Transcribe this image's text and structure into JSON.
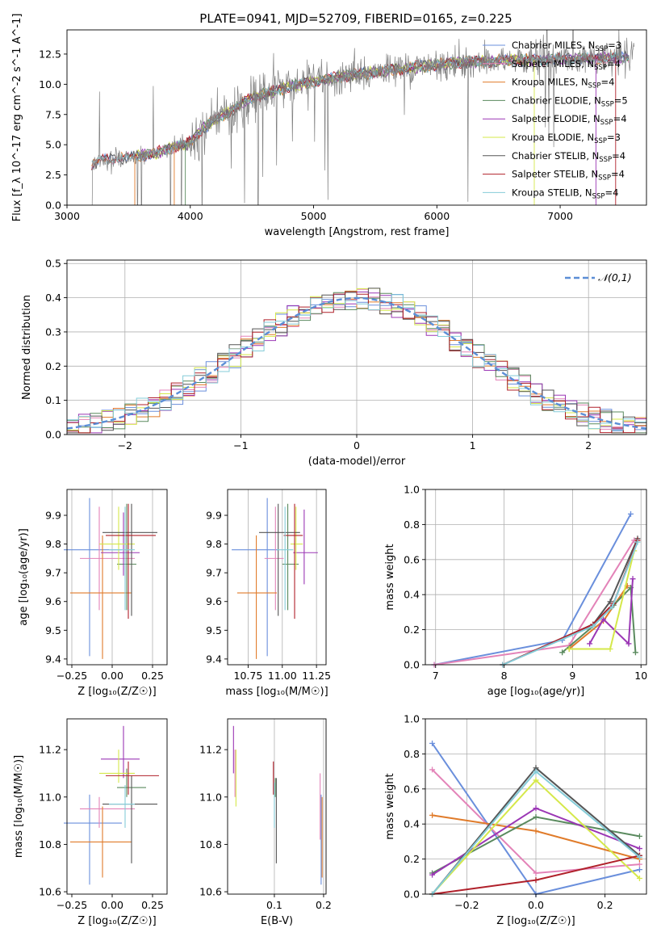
{
  "figure_title": "PLATE=0941, MJD=52709, FIBERID=0165, z=0.225",
  "colors": {
    "chabrier_miles": "#6a8fdc",
    "salpeter_miles": "#e383b8",
    "kroupa_miles": "#e07b2a",
    "chabrier_elodie": "#5a8a5e",
    "salpeter_elodie": "#9b37b5",
    "kroupa_elodie": "#d5e84a",
    "chabrier_stelib": "#555555",
    "salpeter_stelib": "#b0202a",
    "kroupa_stelib": "#84ccd8",
    "data": "#808080",
    "normal": "#5b8ed6",
    "grid": "#b0b0b0"
  },
  "chart_data": [
    {
      "id": "spectrum",
      "type": "line",
      "xlabel": "wavelength [Angstrom, rest frame]",
      "ylabel": "Flux [f_λ 10^-17 erg cm^-2 s^-1 A^-1]",
      "xlim": [
        3000,
        7700
      ],
      "ylim": [
        0,
        14.5
      ],
      "xticks": [
        "3000",
        "4000",
        "5000",
        "6000",
        "7000"
      ],
      "yticks": [
        "0.0",
        "2.5",
        "5.0",
        "7.5",
        "10.0",
        "12.5"
      ],
      "grid": false,
      "legend_position": "right",
      "legend": [
        {
          "label": "Chabrier MILES, N",
          "sub": "SSP",
          "tail": "=3"
        },
        {
          "label": "Salpeter MILES, N",
          "sub": "SSP",
          "tail": "=4"
        },
        {
          "label": "Kroupa MILES, N",
          "sub": "SSP",
          "tail": "=4"
        },
        {
          "label": "Chabrier ELODIE, N",
          "sub": "SSP",
          "tail": "=5"
        },
        {
          "label": "Salpeter ELODIE, N",
          "sub": "SSP",
          "tail": "=4"
        },
        {
          "label": "Kroupa ELODIE, N",
          "sub": "SSP",
          "tail": "=3"
        },
        {
          "label": "Chabrier STELIB, N",
          "sub": "SSP",
          "tail": "=4"
        },
        {
          "label": "Salpeter STELIB, N",
          "sub": "SSP",
          "tail": "=4"
        },
        {
          "label": "Kroupa STELIB, N",
          "sub": "SSP",
          "tail": "=4"
        }
      ],
      "continuum": {
        "x": [
          3200,
          3300,
          3400,
          3500,
          3600,
          3700,
          3800,
          3900,
          4000,
          4100,
          4200,
          4300,
          4400,
          4500,
          4600,
          4700,
          4800,
          4900,
          5000,
          5200,
          5400,
          5600,
          5800,
          6000,
          6200,
          6400,
          6600,
          6800,
          7000,
          7200,
          7400,
          7500,
          7600,
          7700
        ],
        "y": [
          3.3,
          3.8,
          3.9,
          3.9,
          4.1,
          4.2,
          4.6,
          4.9,
          5.2,
          6.3,
          7.0,
          7.6,
          8.3,
          8.9,
          9.2,
          9.5,
          9.8,
          10.0,
          10.2,
          10.6,
          10.9,
          11.1,
          11.4,
          11.6,
          11.8,
          11.9,
          12.0,
          12.0,
          12.1,
          12.1,
          12.2,
          12.2,
          12.3,
          12.3
        ]
      }
    },
    {
      "id": "residuals",
      "type": "area",
      "xlabel": "(data-model)/error",
      "ylabel": "Normed distribution",
      "xlim": [
        -2.5,
        2.5
      ],
      "ylim": [
        0,
        0.51
      ],
      "xticks": [
        "−2",
        "−1",
        "0",
        "1",
        "2"
      ],
      "yticks": [
        "0.0",
        "0.1",
        "0.2",
        "0.3",
        "0.4",
        "0.5"
      ],
      "grid": true,
      "legend_position": "top-right",
      "legend_label": "𝒩(0,1)",
      "bin_width": 0.1
    },
    {
      "id": "z_vs_age",
      "type": "scatter",
      "xlabel": "Z [log₁₀(Z/Z☉)]",
      "ylabel": "age  [log₁₀(age/yr)]",
      "xlim": [
        -0.28,
        0.34
      ],
      "ylim": [
        9.38,
        9.99
      ],
      "xticks": [
        "−0.25",
        "0.00",
        "0.25"
      ],
      "yticks": [
        "9.4",
        "9.5",
        "9.6",
        "9.7",
        "9.8",
        "9.9"
      ],
      "points": [
        {
          "series": "chabrier_miles",
          "x": -0.14,
          "xerr": [
            0.16,
            0.2
          ],
          "y": 9.78,
          "yerr": [
            0.37,
            0.18
          ]
        },
        {
          "series": "salpeter_miles",
          "x": -0.08,
          "xerr": [
            0.12,
            0.22
          ],
          "y": 9.75,
          "yerr": [
            0.18,
            0.18
          ]
        },
        {
          "series": "kroupa_miles",
          "x": -0.06,
          "xerr": [
            0.2,
            0.18
          ],
          "y": 9.63,
          "yerr": [
            0.23,
            0.2
          ]
        },
        {
          "series": "chabrier_elodie",
          "x": 0.09,
          "xerr": [
            0.06,
            0.06
          ],
          "y": 9.73,
          "yerr": [
            0.16,
            0.21
          ]
        },
        {
          "series": "salpeter_elodie",
          "x": 0.07,
          "xerr": [
            0.14,
            0.1
          ],
          "y": 9.77,
          "yerr": [
            0.08,
            0.14
          ]
        },
        {
          "series": "kroupa_elodie",
          "x": 0.04,
          "xerr": [
            0.12,
            0.1
          ],
          "y": 9.8,
          "yerr": [
            0.09,
            0.13
          ]
        },
        {
          "series": "chabrier_stelib",
          "x": 0.12,
          "xerr": [
            0.18,
            0.16
          ],
          "y": 9.84,
          "yerr": [
            0.29,
            0.1
          ]
        },
        {
          "series": "salpeter_stelib",
          "x": 0.1,
          "xerr": [
            0.14,
            0.17
          ],
          "y": 9.83,
          "yerr": [
            0.29,
            0.11
          ]
        },
        {
          "series": "kroupa_stelib",
          "x": 0.08,
          "xerr": [
            0.1,
            0.06
          ],
          "y": 9.78,
          "yerr": [
            0.21,
            0.15
          ]
        }
      ]
    },
    {
      "id": "mass_vs_age",
      "type": "scatter",
      "xlabel": "mass [log₁₀(M/M☉)]",
      "ylabel": "",
      "xlim": [
        10.6,
        11.32
      ],
      "ylim": [
        9.38,
        9.99
      ],
      "xticks": [
        "10.75",
        "11.00",
        "11.25"
      ],
      "yticks": [
        "9.4",
        "9.5",
        "9.6",
        "9.7",
        "9.8",
        "9.9"
      ],
      "points": [
        {
          "series": "chabrier_miles",
          "x": 10.89,
          "xerr": [
            0.26,
            0.08
          ],
          "y": 9.78,
          "yerr": [
            0.37,
            0.18
          ]
        },
        {
          "series": "salpeter_miles",
          "x": 10.95,
          "xerr": [
            0.08,
            0.06
          ],
          "y": 9.75,
          "yerr": [
            0.18,
            0.18
          ]
        },
        {
          "series": "kroupa_miles",
          "x": 10.81,
          "xerr": [
            0.14,
            0.15
          ],
          "y": 9.63,
          "yerr": [
            0.23,
            0.2
          ]
        },
        {
          "series": "chabrier_elodie",
          "x": 11.04,
          "xerr": [
            0.04,
            0.08
          ],
          "y": 9.73,
          "yerr": [
            0.16,
            0.21
          ]
        },
        {
          "series": "salpeter_elodie",
          "x": 11.16,
          "xerr": [
            0.08,
            0.1
          ],
          "y": 9.77,
          "yerr": [
            0.11,
            0.15
          ]
        },
        {
          "series": "kroupa_elodie",
          "x": 11.1,
          "xerr": [
            0.04,
            0.05
          ],
          "y": 9.8,
          "yerr": [
            0.09,
            0.13
          ]
        },
        {
          "series": "chabrier_stelib",
          "x": 10.97,
          "xerr": [
            0.14,
            0.16
          ],
          "y": 9.84,
          "yerr": [
            0.29,
            0.1
          ]
        },
        {
          "series": "salpeter_stelib",
          "x": 11.09,
          "xerr": [
            0.08,
            0.06
          ],
          "y": 9.83,
          "yerr": [
            0.29,
            0.11
          ]
        },
        {
          "series": "kroupa_stelib",
          "x": 11.02,
          "xerr": [
            0.06,
            0.06
          ],
          "y": 9.78,
          "yerr": [
            0.21,
            0.15
          ]
        }
      ]
    },
    {
      "id": "age_mass_weight",
      "type": "line",
      "xlabel": "age  [log₁₀(age/yr)]",
      "ylabel": "mass weight",
      "xlim": [
        6.85,
        10.08
      ],
      "ylim": [
        0,
        1.0
      ],
      "xticks": [
        "7",
        "8",
        "9",
        "10"
      ],
      "yticks": [
        "0.0",
        "0.2",
        "0.4",
        "0.6",
        "0.8",
        "1.0"
      ],
      "grid": true,
      "series": [
        {
          "name": "chabrier_miles",
          "x": [
            6.98,
            8.85,
            9.85
          ],
          "y": [
            0.0,
            0.14,
            0.86
          ]
        },
        {
          "name": "salpeter_miles",
          "x": [
            6.98,
            8.95,
            9.9
          ],
          "y": [
            0.0,
            0.11,
            0.71
          ]
        },
        {
          "name": "kroupa_miles",
          "x": [
            8.95,
            9.45,
            9.8
          ],
          "y": [
            0.09,
            0.25,
            0.45
          ]
        },
        {
          "name": "chabrier_elodie",
          "x": [
            8.85,
            9.3,
            9.6,
            9.85,
            9.92
          ],
          "y": [
            0.07,
            0.22,
            0.34,
            0.44,
            0.07
          ]
        },
        {
          "name": "salpeter_elodie",
          "x": [
            9.25,
            9.45,
            9.82,
            9.88
          ],
          "y": [
            0.12,
            0.26,
            0.12,
            0.49
          ]
        },
        {
          "name": "kroupa_elodie",
          "x": [
            8.95,
            9.55,
            9.9
          ],
          "y": [
            0.09,
            0.09,
            0.65
          ]
        },
        {
          "name": "chabrier_stelib",
          "x": [
            7.98,
            9.3,
            9.55,
            9.95
          ],
          "y": [
            0.0,
            0.23,
            0.36,
            0.72
          ]
        },
        {
          "name": "salpeter_stelib",
          "x": [
            7.98,
            9.3,
            9.6,
            9.95
          ],
          "y": [
            0.0,
            0.23,
            0.35,
            0.71
          ]
        },
        {
          "name": "kroupa_stelib",
          "x": [
            7.98,
            9.3,
            9.58,
            9.95
          ],
          "y": [
            0.0,
            0.22,
            0.33,
            0.7
          ]
        }
      ]
    },
    {
      "id": "z_vs_mass",
      "type": "scatter",
      "xlabel": "Z [log₁₀(Z/Z☉)]",
      "ylabel": "mass [log₁₀(M/M☉)]",
      "xlim": [
        -0.28,
        0.34
      ],
      "ylim": [
        10.59,
        11.33
      ],
      "xticks": [
        "−0.25",
        "0.00",
        "0.25"
      ],
      "yticks": [
        "10.6",
        "10.8",
        "11.0",
        "11.2"
      ],
      "points": [
        {
          "series": "chabrier_miles",
          "x": -0.14,
          "xerr": [
            0.16,
            0.2
          ],
          "y": 10.89,
          "yerr": [
            0.26,
            0.12
          ]
        },
        {
          "series": "salpeter_miles",
          "x": -0.08,
          "xerr": [
            0.12,
            0.22
          ],
          "y": 10.95,
          "yerr": [
            0.08,
            0.05
          ]
        },
        {
          "series": "kroupa_miles",
          "x": -0.06,
          "xerr": [
            0.2,
            0.18
          ],
          "y": 10.81,
          "yerr": [
            0.15,
            0.15
          ]
        },
        {
          "series": "chabrier_elodie",
          "x": 0.09,
          "xerr": [
            0.06,
            0.12
          ],
          "y": 11.04,
          "yerr": [
            0.04,
            0.08
          ]
        },
        {
          "series": "salpeter_elodie",
          "x": 0.07,
          "xerr": [
            0.14,
            0.1
          ],
          "y": 11.16,
          "yerr": [
            0.08,
            0.14
          ]
        },
        {
          "series": "kroupa_elodie",
          "x": 0.04,
          "xerr": [
            0.12,
            0.1
          ],
          "y": 11.1,
          "yerr": [
            0.04,
            0.1
          ]
        },
        {
          "series": "chabrier_stelib",
          "x": 0.12,
          "xerr": [
            0.18,
            0.16
          ],
          "y": 10.97,
          "yerr": [
            0.25,
            0.12
          ]
        },
        {
          "series": "salpeter_stelib",
          "x": 0.1,
          "xerr": [
            0.14,
            0.19
          ],
          "y": 11.09,
          "yerr": [
            0.08,
            0.06
          ]
        },
        {
          "series": "kroupa_stelib",
          "x": 0.08,
          "xerr": [
            0.1,
            0.06
          ],
          "y": 10.97,
          "yerr": [
            0.1,
            0.08
          ]
        }
      ]
    },
    {
      "id": "ebv_vs_mass",
      "type": "scatter",
      "xlabel": "E(B-V)",
      "ylabel": "",
      "xlim": [
        0.005,
        0.205
      ],
      "ylim": [
        10.59,
        11.33
      ],
      "xticks": [
        "0.1",
        "0.2"
      ],
      "yticks": [
        "10.6",
        "10.8",
        "11.0",
        "11.2"
      ],
      "points": [
        {
          "series": "salpeter_elodie",
          "x": 0.017,
          "y": 11.18,
          "yerr": [
            0.08,
            0.12
          ]
        },
        {
          "series": "kroupa_elodie",
          "x": 0.022,
          "y": 11.1,
          "yerr": [
            0.14,
            0.1
          ]
        },
        {
          "series": "salpeter_miles",
          "x": 0.02,
          "y": 11.12,
          "yerr": [
            0.12,
            0.08
          ]
        },
        {
          "series": "salpeter_stelib",
          "x": 0.098,
          "y": 11.09,
          "yerr": [
            0.08,
            0.06
          ]
        },
        {
          "series": "chabrier_stelib",
          "x": 0.104,
          "y": 10.97,
          "yerr": [
            0.25,
            0.11
          ]
        },
        {
          "series": "kroupa_stelib",
          "x": 0.1,
          "y": 10.97,
          "yerr": [
            0.1,
            0.09
          ]
        },
        {
          "series": "chabrier_elodie",
          "x": 0.102,
          "y": 11.04,
          "yerr": [
            0.04,
            0.04
          ]
        },
        {
          "series": "kroupa_miles",
          "x": 0.197,
          "y": 10.81,
          "yerr": [
            0.15,
            0.19
          ]
        },
        {
          "series": "salpeter_miles",
          "x": 0.193,
          "y": 10.98,
          "yerr": [
            0.16,
            0.12
          ]
        },
        {
          "series": "chabrier_miles",
          "x": 0.195,
          "y": 10.89,
          "yerr": [
            0.26,
            0.12
          ]
        }
      ]
    },
    {
      "id": "z_mass_weight",
      "type": "line",
      "xlabel": "Z [log₁₀(Z/Z☉)]",
      "ylabel": "mass weight",
      "xlim": [
        -0.32,
        0.32
      ],
      "ylim": [
        0,
        1.0
      ],
      "xticks": [
        "−0.2",
        "0.0",
        "0.2"
      ],
      "yticks": [
        "0.0",
        "0.2",
        "0.4",
        "0.6",
        "0.8",
        "1.0"
      ],
      "grid": true,
      "series": [
        {
          "name": "chabrier_miles",
          "x": [
            -0.3,
            0.0,
            0.3
          ],
          "y": [
            0.86,
            0.0,
            0.14
          ]
        },
        {
          "name": "salpeter_miles",
          "x": [
            -0.3,
            0.0,
            0.3
          ],
          "y": [
            0.71,
            0.12,
            0.17
          ]
        },
        {
          "name": "kroupa_miles",
          "x": [
            -0.3,
            0.0,
            0.3
          ],
          "y": [
            0.45,
            0.36,
            0.2
          ]
        },
        {
          "name": "chabrier_elodie",
          "x": [
            -0.3,
            0.0,
            0.3
          ],
          "y": [
            0.12,
            0.44,
            0.33
          ]
        },
        {
          "name": "salpeter_elodie",
          "x": [
            -0.3,
            0.0,
            0.3
          ],
          "y": [
            0.11,
            0.49,
            0.26
          ]
        },
        {
          "name": "kroupa_elodie",
          "x": [
            -0.3,
            0.0,
            0.3
          ],
          "y": [
            0.0,
            0.65,
            0.09
          ]
        },
        {
          "name": "chabrier_stelib",
          "x": [
            -0.3,
            0.0,
            0.3
          ],
          "y": [
            0.0,
            0.72,
            0.22
          ]
        },
        {
          "name": "salpeter_stelib",
          "x": [
            -0.3,
            0.0,
            0.3
          ],
          "y": [
            0.0,
            0.08,
            0.22
          ]
        },
        {
          "name": "kroupa_stelib",
          "x": [
            -0.3,
            0.0,
            0.3
          ],
          "y": [
            0.0,
            0.7,
            0.21
          ]
        }
      ]
    }
  ]
}
